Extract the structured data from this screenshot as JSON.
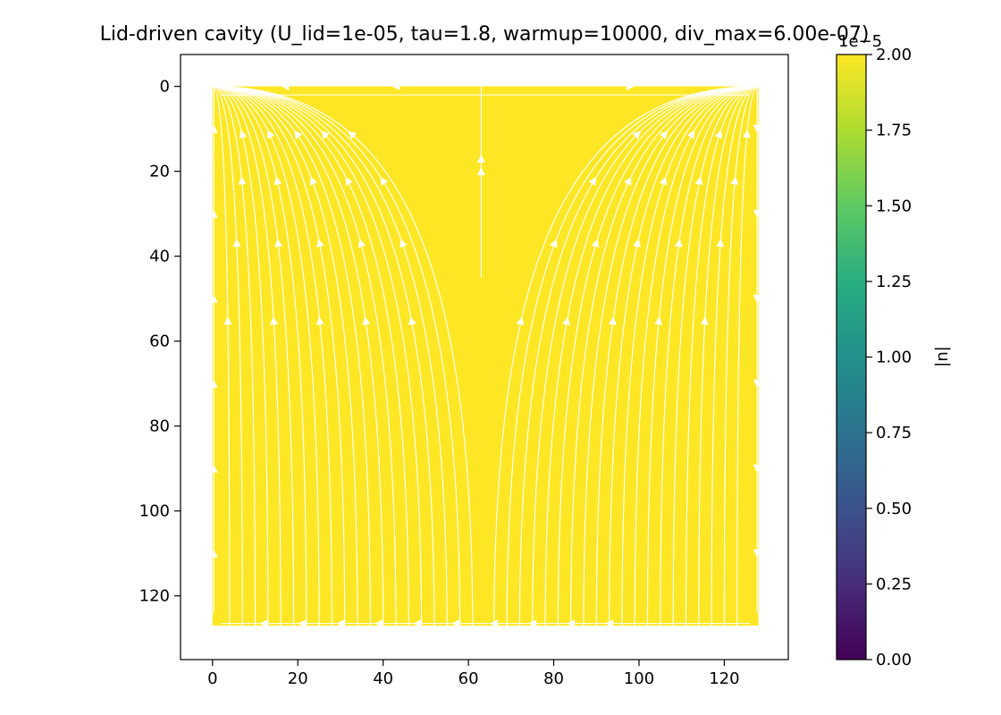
{
  "chart_data": {
    "type": "heatmap",
    "title": "Lid-driven cavity (U_lid=1e-05, tau=1.8, warmup=10000, div_max=6.00e-07)",
    "xlabel": "",
    "ylabel": "",
    "xlim": [
      -7.5,
      135
    ],
    "ylim": [
      135,
      -7.5
    ],
    "y_inverted": true,
    "field_extent": {
      "x": [
        0,
        128
      ],
      "y": [
        0,
        127
      ]
    },
    "field_color": "#fde725",
    "streamline_color": "#ffffff",
    "x_ticks": [
      0,
      20,
      40,
      60,
      80,
      100,
      120
    ],
    "y_ticks": [
      0,
      20,
      40,
      60,
      80,
      100,
      120
    ],
    "x_tick_labels": [
      "0",
      "20",
      "40",
      "60",
      "80",
      "100",
      "120"
    ],
    "y_tick_labels": [
      "0",
      "20",
      "40",
      "60",
      "80",
      "100",
      "120"
    ],
    "grid": false,
    "colorbar": {
      "label": "|u|",
      "colormap": "viridis",
      "vmin": 0,
      "vmax": 2.0,
      "offset_text": "1e−5",
      "ticks": [
        0,
        0.25,
        0.5,
        0.75,
        1.0,
        1.25,
        1.5,
        1.75,
        2.0
      ],
      "tick_labels": [
        "0.00",
        "0.25",
        "0.50",
        "0.75",
        "1.00",
        "1.25",
        "1.50",
        "1.75",
        "2.00"
      ]
    },
    "streamlines": {
      "divide_x": 63,
      "left_tips_x": [
        4,
        7,
        10,
        13,
        16,
        19,
        22,
        25,
        28,
        31,
        34,
        37,
        40,
        43,
        46,
        49,
        52,
        55,
        58,
        61
      ],
      "right_tips_x": [
        66,
        69,
        72,
        75,
        78,
        81,
        84,
        87,
        90,
        93,
        96,
        99,
        102,
        105,
        108,
        111,
        114,
        117,
        120,
        123
      ]
    }
  }
}
